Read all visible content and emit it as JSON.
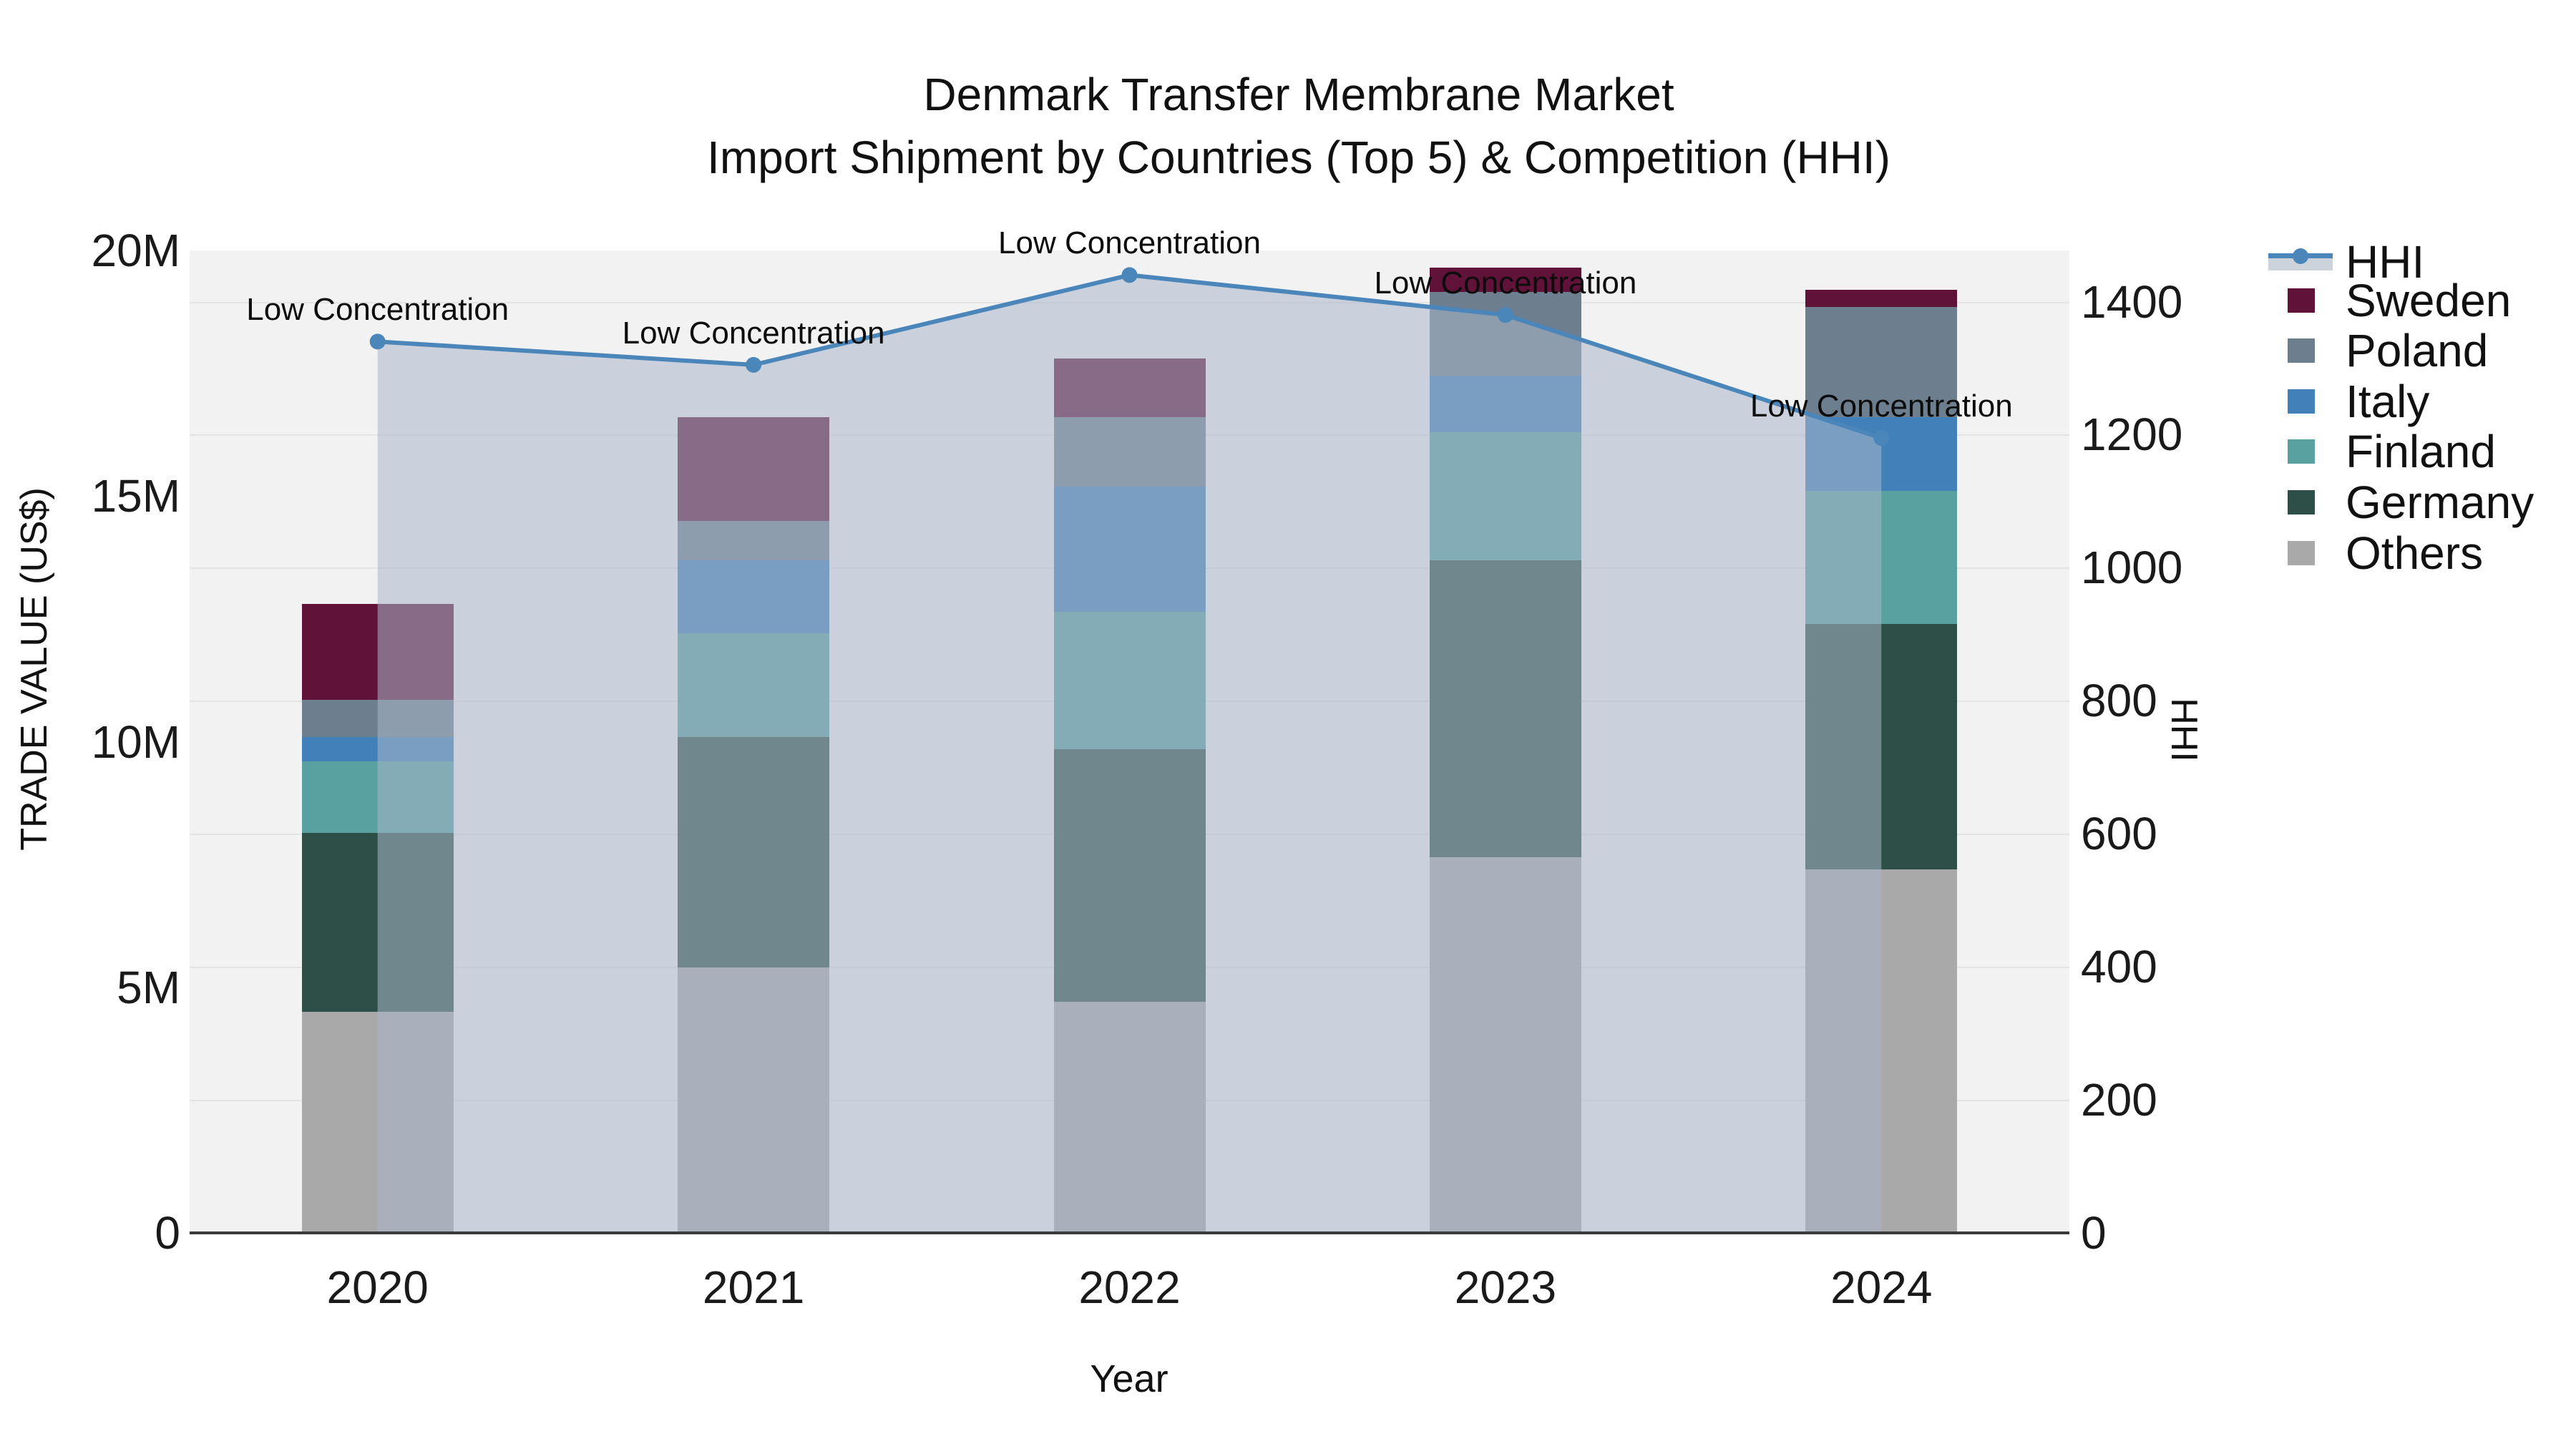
{
  "title": {
    "line1": "Denmark Transfer Membrane Market",
    "line2": "Import Shipment by Countries (Top 5) & Competition (HHI)"
  },
  "axes": {
    "left": {
      "title": "TRADE VALUE (US$)",
      "ticks": [
        {
          "label": "0",
          "value": 0
        },
        {
          "label": "5M",
          "value": 5
        },
        {
          "label": "10M",
          "value": 10
        },
        {
          "label": "15M",
          "value": 15
        },
        {
          "label": "20M",
          "value": 20
        }
      ]
    },
    "right": {
      "title": "HHI",
      "ticks": [
        {
          "label": "0",
          "value": 0
        },
        {
          "label": "200",
          "value": 200
        },
        {
          "label": "400",
          "value": 400
        },
        {
          "label": "600",
          "value": 600
        },
        {
          "label": "800",
          "value": 800
        },
        {
          "label": "1000",
          "value": 1000
        },
        {
          "label": "1200",
          "value": 1200
        },
        {
          "label": "1400",
          "value": 1400
        }
      ]
    },
    "x": {
      "title": "Year"
    }
  },
  "chart_data": {
    "type": "bar+line",
    "categories": [
      "2020",
      "2021",
      "2022",
      "2023",
      "2024"
    ],
    "bar_value_unit": "million US$",
    "stack_order_bottom_to_top": [
      "Others",
      "Germany",
      "Finland",
      "Italy",
      "Poland",
      "Sweden"
    ],
    "series": [
      {
        "name": "Others",
        "color": "#a9a9aa",
        "values": [
          4.5,
          5.4,
          4.7,
          7.65,
          7.4
        ]
      },
      {
        "name": "Germany",
        "color": "#2e4e48",
        "values": [
          3.65,
          4.7,
          5.15,
          6.05,
          5.0
        ]
      },
      {
        "name": "Finland",
        "color": "#58a1a0",
        "values": [
          1.45,
          2.1,
          2.8,
          2.6,
          2.7
        ]
      },
      {
        "name": "Italy",
        "color": "#4280ba",
        "values": [
          0.5,
          1.5,
          2.55,
          1.15,
          1.5
        ]
      },
      {
        "name": "Poland",
        "color": "#6d7e8e",
        "values": [
          0.75,
          0.8,
          1.4,
          1.7,
          2.25
        ]
      },
      {
        "name": "Sweden",
        "color": "#601238",
        "values": [
          1.95,
          2.1,
          1.2,
          0.5,
          0.35
        ]
      }
    ],
    "line": {
      "name": "HHI",
      "color": "#4a86ba",
      "area_fill": "rgba(170,182,200,0.55)",
      "values": [
        1340,
        1305,
        1440,
        1380,
        1195
      ]
    },
    "annotations": [
      "Low Concentration",
      "Low Concentration",
      "Low Concentration",
      "Low Concentration",
      "Low Concentration"
    ],
    "ylim_left": [
      0,
      20
    ],
    "ylim_right": [
      0,
      1477
    ],
    "grid": "horizontal, at right-axis ticks",
    "legend_position": "right"
  },
  "legend": {
    "entries": [
      {
        "label": "HHI",
        "type": "line"
      },
      {
        "label": "Sweden",
        "type": "swatch",
        "color": "#601238"
      },
      {
        "label": "Poland",
        "type": "swatch",
        "color": "#6d7e8e"
      },
      {
        "label": "Italy",
        "type": "swatch",
        "color": "#4280ba"
      },
      {
        "label": "Finland",
        "type": "swatch",
        "color": "#58a1a0"
      },
      {
        "label": "Germany",
        "type": "swatch",
        "color": "#2e4e48"
      },
      {
        "label": "Others",
        "type": "swatch",
        "color": "#a9a9aa"
      }
    ]
  }
}
